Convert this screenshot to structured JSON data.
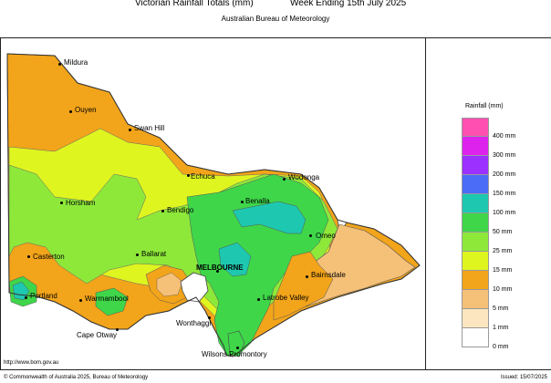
{
  "header": {
    "title": "Victorian Rainfall Totals (mm)",
    "period": "Week Ending 15th July 2025",
    "subtitle": "Australian Bureau of Meteorology"
  },
  "legend": {
    "title": "Rainfall (mm)",
    "bins": [
      {
        "label": "400 mm",
        "color": "#ff4fb0"
      },
      {
        "label": "300 mm",
        "color": "#dd22ee"
      },
      {
        "label": "200 mm",
        "color": "#9b30ff"
      },
      {
        "label": "150 mm",
        "color": "#4a6cf7"
      },
      {
        "label": "100 mm",
        "color": "#1ec8b0"
      },
      {
        "label": "50 mm",
        "color": "#3fd64a"
      },
      {
        "label": "25 mm",
        "color": "#8ee83a"
      },
      {
        "label": "15 mm",
        "color": "#dff520"
      },
      {
        "label": "10 mm",
        "color": "#f2a41a"
      },
      {
        "label": "5 mm",
        "color": "#f5c078"
      },
      {
        "label": "1 mm",
        "color": "#fbe6bf"
      },
      {
        "label": "0 mm",
        "color": "#ffffff"
      }
    ]
  },
  "places": [
    {
      "name": "Mildura"
    },
    {
      "name": "Ouyen"
    },
    {
      "name": "Swan Hill"
    },
    {
      "name": "Echuca"
    },
    {
      "name": "Wodonga"
    },
    {
      "name": "Horsham"
    },
    {
      "name": "Benalla"
    },
    {
      "name": "Bendigo"
    },
    {
      "name": "Omeo"
    },
    {
      "name": "Casterton"
    },
    {
      "name": "Ballarat"
    },
    {
      "name": "MELBOURNE"
    },
    {
      "name": "Bairnsdale"
    },
    {
      "name": "Portland"
    },
    {
      "name": "Warrnambool"
    },
    {
      "name": "Latrobe Valley"
    },
    {
      "name": "Wonthaggi"
    },
    {
      "name": "Cape Otway"
    },
    {
      "name": "Wilsons Promontory"
    }
  ],
  "footer": {
    "url": "http://www.bom.gov.au",
    "copyright": "© Commonwealth of Australia 2025, Bureau of Meteorology",
    "issued": "Issued: 15/07/2025"
  }
}
